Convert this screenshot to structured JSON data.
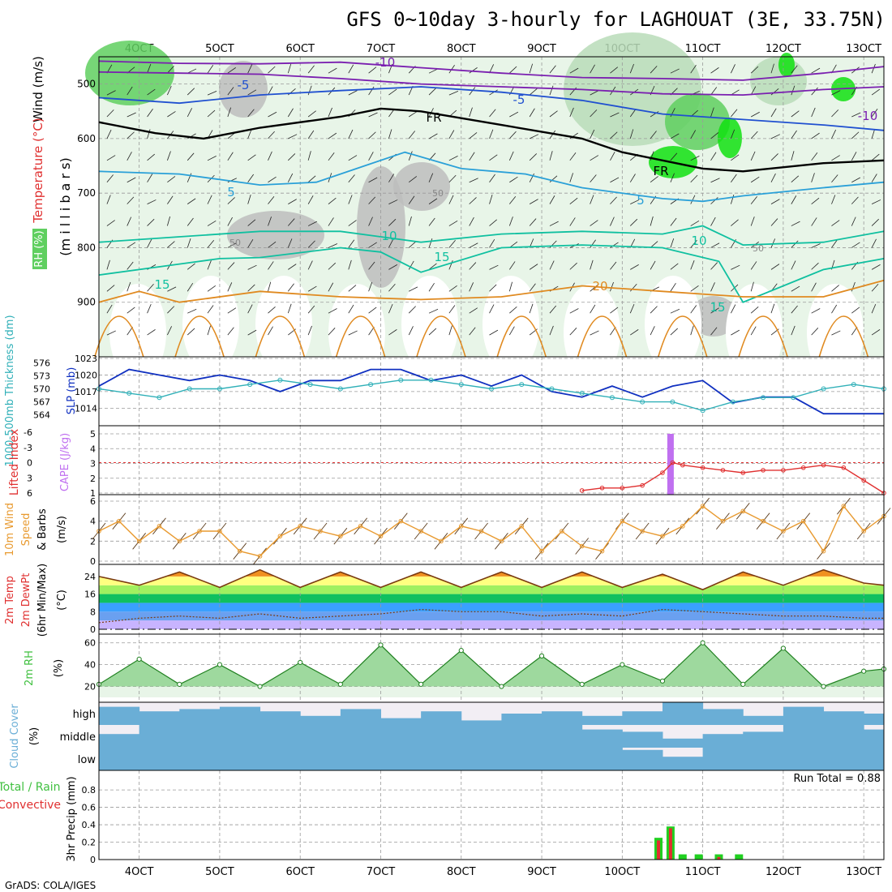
{
  "title": "GFS 0~10day 3-hourly for LAGHOUAT (3E, 33.75N)",
  "credit": "GrADS: COLA/IGES",
  "colors": {
    "grid": "#9a9a9a",
    "rh_light": "#e8f5e8",
    "rh_mid": "#b9dcb9",
    "rh_dark": "#5fcf5f",
    "rh_bright": "#10e010",
    "gray": "#bdbdbd",
    "temp_cold": "#7a1fb0",
    "temp_cool": "#2050d0",
    "temp_mid": "#2aa0d8",
    "temp_warm": "#10c0a0",
    "temp_hot": "#e08a20",
    "slp": "#1030c0",
    "thickness": "#30b0b8",
    "lifted": "#e03030",
    "cape": "#c070f0",
    "wind10": "#e89a30",
    "temp2m_fill": "#f09020",
    "rh2m": "#40c040",
    "cloud": "#6aaed6",
    "cloud_clear": "#f2eef4",
    "precip_total": "#20d020",
    "precip_conv": "#e03030"
  },
  "x_axis": {
    "labels": [
      "4OCT",
      "5OCT",
      "6OCT",
      "7OCT",
      "8OCT",
      "9OCT",
      "10OCT",
      "11OCT",
      "12OCT",
      "13OCT"
    ],
    "days": [
      4,
      5,
      6,
      7,
      8,
      9,
      10,
      11,
      12,
      13
    ],
    "start_day": 3.5,
    "end_day": 13.25
  },
  "panels": {
    "upper_air": {
      "ylabel_main": "(m i l l i b a r s)",
      "ylabel_wind": "Wind (m/s)",
      "ylabel_temp": "Temperature (°C)",
      "ylabel_rh": "RH (%)",
      "yticks": [
        "500",
        "600",
        "700",
        "800",
        "900"
      ],
      "contour_labels": [
        "-10",
        "-10",
        "-5",
        "-5",
        "FR",
        "FR",
        "5",
        "5",
        "10",
        "10",
        "15",
        "15",
        "15",
        "20",
        "50",
        "50",
        "50"
      ]
    },
    "slp": {
      "ylabel_left": "1000-500mb Thickness (dm)",
      "ylabel_right": "SLP (mb)",
      "yticks_left": [
        "576",
        "573",
        "570",
        "567",
        "564"
      ],
      "yticks_right": [
        "1023",
        "1020",
        "1017",
        "1014"
      ]
    },
    "stability": {
      "ylabel_left": "Lifted Index",
      "ylabel_right": "CAPE (J/kg)",
      "yticks_left": [
        "-6",
        "-3",
        "0",
        "3",
        "6"
      ],
      "yticks_right": [
        "5",
        "4",
        "3",
        "2",
        "1"
      ]
    },
    "wind10m": {
      "ylabel": [
        "10m Wind",
        "Speed",
        "& Barbs",
        "(m/s)"
      ],
      "yticks": [
        "6",
        "4",
        "2",
        "0"
      ]
    },
    "temp2m": {
      "ylabel": [
        "2m Temp",
        "2m DewPt",
        "(6hr Min/Max)",
        "(°C)"
      ],
      "yticks": [
        "24",
        "16",
        "8",
        "0"
      ]
    },
    "rh2m": {
      "ylabel": [
        "2m RH",
        "(%)"
      ],
      "yticks": [
        "60",
        "40",
        "20"
      ]
    },
    "cloud": {
      "ylabel": [
        "Cloud Cover",
        "(%)"
      ],
      "levels": [
        "high",
        "middle",
        "low"
      ]
    },
    "precip": {
      "ylabel": [
        "3hr Precip (mm)",
        "Total / Rain",
        "Convective"
      ],
      "yticks": [
        "0.8",
        "0.6",
        "0.4",
        "0.2",
        "0"
      ],
      "run_total": "Run Total = 0.88"
    }
  },
  "chart_data": [
    {
      "type": "line",
      "title": "Upper-air temperature contours",
      "y_unit": "mb",
      "ylim": [
        1000,
        450
      ],
      "series": [
        {
          "name": "-10",
          "x": [
            3.5,
            4.5,
            5.5,
            6.5,
            7.5,
            8.5,
            9.5,
            10.5,
            11.5,
            12.5,
            13.25
          ],
          "values": [
            458,
            462,
            463,
            460,
            470,
            480,
            488,
            490,
            493,
            480,
            468
          ]
        },
        {
          "name": "-10",
          "x": [
            3.5,
            4.5,
            5.5,
            6.5,
            7.5,
            8.5,
            9.5,
            10.5,
            11.5,
            12.5,
            13.25
          ],
          "values": [
            478,
            480,
            482,
            490,
            500,
            505,
            510,
            518,
            520,
            510,
            505
          ]
        },
        {
          "name": "-5",
          "x": [
            3.5,
            4.5,
            5.5,
            6.5,
            7.5,
            8.5,
            9.5,
            10.5,
            11.5,
            12.5,
            13.25
          ],
          "values": [
            525,
            535,
            520,
            512,
            505,
            515,
            530,
            555,
            565,
            575,
            585
          ]
        },
        {
          "name": "FR",
          "x": [
            3.5,
            4.2,
            4.8,
            5.5,
            6.5,
            7.0,
            7.5,
            8.5,
            9.5,
            10.0,
            10.5,
            11.0,
            11.5,
            12.5,
            13.25
          ],
          "values": [
            570,
            590,
            600,
            580,
            560,
            545,
            550,
            575,
            600,
            625,
            640,
            655,
            660,
            645,
            640
          ]
        },
        {
          "name": "5",
          "x": [
            3.5,
            4.5,
            5.5,
            6.2,
            6.8,
            7.3,
            8.0,
            8.8,
            9.5,
            10.5,
            11.0,
            11.5,
            12.5,
            13.25
          ],
          "values": [
            660,
            665,
            685,
            680,
            650,
            625,
            655,
            665,
            690,
            710,
            715,
            705,
            690,
            680
          ]
        },
        {
          "name": "10",
          "x": [
            3.5,
            4.5,
            5.5,
            6.5,
            7.0,
            7.5,
            8.5,
            9.5,
            10.5,
            11.0,
            11.5,
            12.5,
            13.25
          ],
          "values": [
            790,
            780,
            770,
            770,
            780,
            790,
            775,
            770,
            775,
            760,
            795,
            790,
            770
          ]
        },
        {
          "name": "15",
          "x": [
            3.5,
            4.5,
            5.0,
            5.5,
            6.5,
            7.0,
            7.5,
            8.5,
            9.5,
            10.5,
            11.2,
            11.5,
            12.5,
            13.25
          ],
          "values": [
            850,
            830,
            820,
            818,
            800,
            808,
            845,
            800,
            795,
            800,
            825,
            900,
            840,
            820
          ]
        },
        {
          "name": "20",
          "x": [
            3.5,
            4.0,
            4.5,
            5.5,
            6.5,
            7.5,
            8.5,
            9.5,
            10.5,
            11.5,
            12.5,
            13.25
          ],
          "values": [
            900,
            880,
            900,
            880,
            890,
            895,
            890,
            870,
            880,
            890,
            890,
            860
          ]
        }
      ]
    },
    {
      "type": "line",
      "title": "SLP (mb) and 1000-500mb thickness (dm)",
      "x": [
        3.5,
        3.875,
        4.25,
        4.625,
        5.0,
        5.375,
        5.75,
        6.125,
        6.5,
        6.875,
        7.25,
        7.625,
        8.0,
        8.375,
        8.75,
        9.125,
        9.5,
        9.875,
        10.25,
        10.625,
        11.0,
        11.375,
        11.75,
        12.125,
        12.5,
        12.875,
        13.25
      ],
      "series": [
        {
          "name": "SLP",
          "values": [
            1018,
            1021,
            1020,
            1019,
            1020,
            1019,
            1017,
            1019,
            1019,
            1021,
            1021,
            1019,
            1020,
            1018,
            1020,
            1017,
            1016,
            1018,
            1016,
            1018,
            1019,
            1015,
            1016,
            1016,
            1013,
            1013,
            1013
          ]
        },
        {
          "name": "Thickness",
          "values": [
            570,
            569,
            568,
            570,
            570,
            571,
            572,
            571,
            570,
            571,
            572,
            572,
            571,
            570,
            571,
            570,
            569,
            568,
            567,
            567,
            565,
            567,
            568,
            568,
            570,
            571,
            570
          ]
        }
      ]
    },
    {
      "type": "line",
      "title": "Lifted Index / CAPE",
      "x": [
        9.5,
        9.75,
        10.0,
        10.25,
        10.5,
        10.625,
        10.75,
        11.0,
        11.25,
        11.5,
        11.75,
        12.0,
        12.25,
        12.5,
        12.75,
        13.0,
        13.25
      ],
      "series": [
        {
          "name": "Lifted Index",
          "values": [
            5.5,
            5,
            5,
            4.5,
            2,
            0,
            0.5,
            1,
            1.5,
            2,
            1.5,
            1.5,
            1,
            0.5,
            1,
            3.5,
            6
          ]
        }
      ],
      "cape_bar": {
        "x": 10.6,
        "value": 5
      }
    },
    {
      "type": "line",
      "title": "10m wind speed (m/s)",
      "x": [
        3.5,
        3.75,
        4.0,
        4.25,
        4.5,
        4.75,
        5.0,
        5.25,
        5.5,
        5.75,
        6.0,
        6.25,
        6.5,
        6.75,
        7.0,
        7.25,
        7.5,
        7.75,
        8.0,
        8.25,
        8.5,
        8.75,
        9.0,
        9.25,
        9.5,
        9.75,
        10.0,
        10.25,
        10.5,
        10.75,
        11.0,
        11.25,
        11.5,
        11.75,
        12.0,
        12.25,
        12.5,
        12.75,
        13.0,
        13.25
      ],
      "series": [
        {
          "name": "Speed",
          "values": [
            3,
            4,
            2,
            3.5,
            2,
            3,
            3,
            1,
            0.5,
            2.5,
            3.5,
            3,
            2.5,
            3.5,
            2.5,
            4,
            3,
            2,
            3.5,
            3,
            2,
            3.5,
            1,
            3,
            1.5,
            1,
            4,
            3,
            2.5,
            3.5,
            5.5,
            4,
            5,
            4,
            3,
            4,
            1,
            5.5,
            3,
            4.5
          ]
        }
      ]
    },
    {
      "type": "area",
      "title": "2m temperature and dewpoint (°C)",
      "x": [
        3.5,
        4.0,
        4.5,
        5.0,
        5.5,
        6.0,
        6.5,
        7.0,
        7.5,
        8.0,
        8.5,
        9.0,
        9.5,
        10.0,
        10.5,
        11.0,
        11.5,
        12.0,
        12.5,
        13.0,
        13.25
      ],
      "series": [
        {
          "name": "Temperature",
          "values": [
            24,
            20,
            26,
            19,
            27,
            19,
            26,
            19,
            26,
            19,
            26,
            19,
            26,
            19,
            25,
            18,
            26,
            20,
            27,
            21,
            20
          ]
        },
        {
          "name": "DewPt",
          "values": [
            3,
            5,
            6,
            5,
            7,
            5,
            6,
            7,
            9,
            8,
            8,
            6,
            7,
            6,
            9,
            8,
            7,
            6,
            6,
            5,
            5
          ]
        }
      ]
    },
    {
      "type": "area",
      "title": "2m RH (%)",
      "x": [
        3.5,
        4.0,
        4.5,
        5.0,
        5.5,
        6.0,
        6.5,
        7.0,
        7.5,
        8.0,
        8.5,
        9.0,
        9.5,
        10.0,
        10.5,
        11.0,
        11.5,
        12.0,
        12.5,
        13.0,
        13.25
      ],
      "series": [
        {
          "name": "RH",
          "values": [
            22,
            45,
            22,
            40,
            20,
            42,
            22,
            58,
            22,
            53,
            20,
            48,
            22,
            40,
            25,
            60,
            22,
            55,
            20,
            34,
            36
          ]
        }
      ]
    },
    {
      "type": "bar",
      "title": "Cloud cover (%)",
      "x": [
        3.5,
        4.0,
        4.5,
        5.0,
        5.5,
        6.0,
        6.5,
        7.0,
        7.5,
        8.0,
        8.5,
        9.0,
        9.5,
        10.0,
        10.5,
        11.0,
        11.5,
        12.0,
        12.5,
        13.0
      ],
      "series": [
        {
          "name": "high",
          "values": [
            80,
            60,
            70,
            80,
            60,
            40,
            70,
            30,
            60,
            20,
            50,
            60,
            40,
            60,
            100,
            70,
            40,
            80,
            60,
            50
          ]
        },
        {
          "name": "middle",
          "values": [
            60,
            100,
            100,
            100,
            100,
            100,
            100,
            100,
            100,
            100,
            100,
            100,
            80,
            70,
            40,
            60,
            70,
            100,
            100,
            80
          ]
        },
        {
          "name": "low",
          "values": [
            100,
            100,
            100,
            100,
            100,
            100,
            100,
            100,
            100,
            100,
            100,
            100,
            100,
            90,
            60,
            100,
            100,
            100,
            100,
            100
          ]
        }
      ]
    },
    {
      "type": "bar",
      "title": "3hr Precip (mm)",
      "x": [
        10.45,
        10.6,
        10.75,
        10.95,
        11.2,
        11.45
      ],
      "series": [
        {
          "name": "Total",
          "values": [
            0.25,
            0.38,
            0.06,
            0.06,
            0.06,
            0.06
          ]
        },
        {
          "name": "Convective",
          "values": [
            0.22,
            0.36,
            0.0,
            0.0,
            0.03,
            0.0
          ]
        }
      ]
    }
  ]
}
